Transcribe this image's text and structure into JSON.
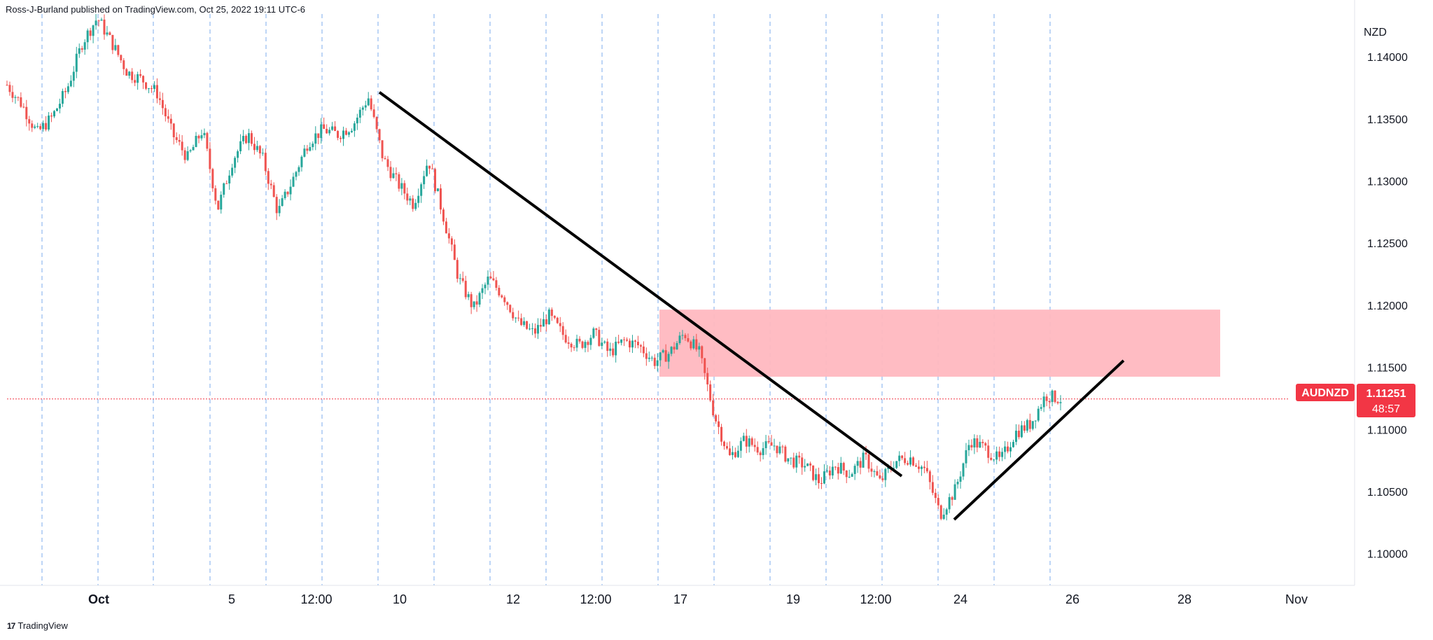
{
  "header": {
    "published": "Ross-J-Burland published on TradingView.com, Oct 25, 2022 19:11 UTC-6"
  },
  "footer": {
    "logo": "17",
    "brand": "TradingView"
  },
  "colors": {
    "up": "#26a69a",
    "down": "#ef5350",
    "zone": "#ffb8c0",
    "grid": "#4f8fe6",
    "badge": "#f23645",
    "axis_text": "#131722"
  },
  "chart_data": {
    "type": "candlestick",
    "symbol": "AUDNZD",
    "currency": "NZD",
    "ylim": [
      1.0975,
      1.1435
    ],
    "x_ticks": [
      "Oct",
      "5",
      "12:00",
      "10",
      "12",
      "12:00",
      "17",
      "19",
      "12:00",
      "24",
      "26",
      "28",
      "Nov"
    ],
    "y_ticks": [
      "1.14000",
      "1.13500",
      "1.13000",
      "1.12500",
      "1.12000",
      "1.11500",
      "1.11000",
      "1.10500",
      "1.10000"
    ],
    "y_tick_values": [
      1.14,
      1.135,
      1.13,
      1.125,
      1.12,
      1.115,
      1.11,
      1.105,
      1.1
    ],
    "last_price": {
      "label": "AUDNZD",
      "value": "1.11251",
      "countdown": "48:57",
      "price": 1.11251
    },
    "price_series": [
      1.1378,
      1.1362,
      1.1339,
      1.1352,
      1.1375,
      1.1412,
      1.1432,
      1.1411,
      1.1388,
      1.1382,
      1.1371,
      1.1338,
      1.1319,
      1.1342,
      1.1278,
      1.1318,
      1.1338,
      1.1318,
      1.1275,
      1.1302,
      1.1332,
      1.1342,
      1.1338,
      1.1346,
      1.1368,
      1.1318,
      1.1298,
      1.1282,
      1.1318,
      1.1272,
      1.1222,
      1.1198,
      1.1222,
      1.1208,
      1.1186,
      1.1178,
      1.1192,
      1.1176,
      1.1168,
      1.1178,
      1.1162,
      1.1172,
      1.1168,
      1.1155,
      1.1162,
      1.1178,
      1.1162,
      1.1112,
      1.1078,
      1.1092,
      1.1085,
      1.1088,
      1.1076,
      1.1072,
      1.1058,
      1.1072,
      1.1065,
      1.1078,
      1.1058,
      1.1075,
      1.1078,
      1.1068,
      1.1032,
      1.1052,
      1.1092,
      1.1085,
      1.1075,
      1.1098,
      1.1105,
      1.1128,
      1.1125
    ]
  },
  "annotations": {
    "resistance_zone": {
      "y_top": 1.1197,
      "y_bottom": 1.1143
    },
    "downtrend_line": {
      "y_start": 1.1372,
      "y_end": 1.1063
    },
    "uptrend_line": {
      "y_start": 1.1028,
      "y_end": 1.1156
    }
  }
}
